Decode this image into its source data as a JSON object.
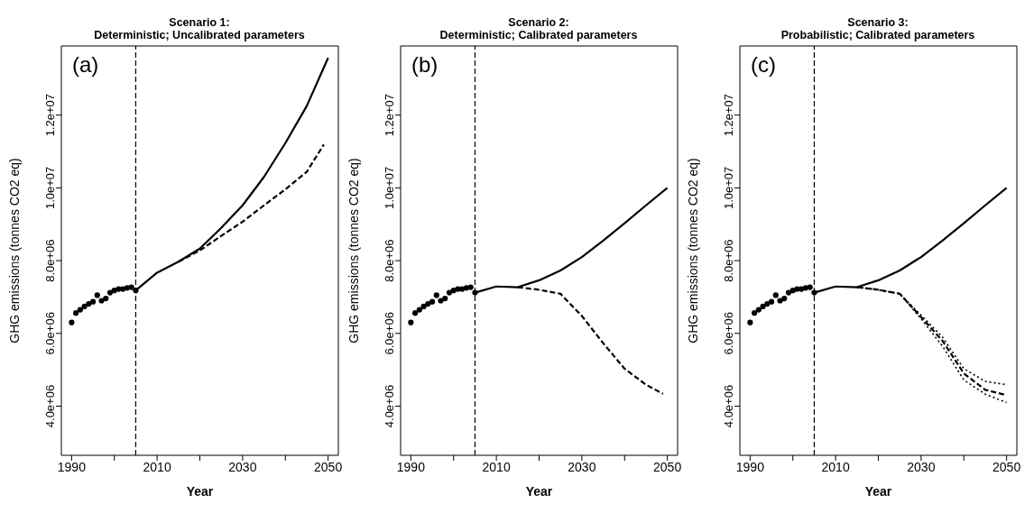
{
  "chart_data": [
    {
      "type": "line",
      "title": "Scenario 1:\nDeterministic; Uncalibrated parameters",
      "xlabel": "Year",
      "ylabel": "GHG emissions (tonnes CO2 eq)",
      "annotations": [
        "(a)"
      ],
      "xlim": [
        1987.6,
        2052.4
      ],
      "ylim": [
        2650000,
        13900000
      ],
      "xticks": [
        1990,
        {
          "value": 2000,
          "label": null
        },
        2010,
        {
          "value": 2020,
          "label": null
        },
        2030,
        {
          "value": 2040,
          "label": null
        },
        2050
      ],
      "yticks": [
        {
          "value": 4000000,
          "label": "4.0e+06"
        },
        {
          "value": 6000000,
          "label": "6.0e+06"
        },
        {
          "value": 8000000,
          "label": "8.0e+06"
        },
        {
          "value": 10000000,
          "label": "1.0e+07"
        },
        {
          "value": 12000000,
          "label": "1.2e+07"
        }
      ],
      "grid": false,
      "legend": false,
      "ref_lines": [
        {
          "axis": "x",
          "value": 2005,
          "line_style": "dashed",
          "color": "#000000"
        }
      ],
      "series": [
        {
          "type": "scatter",
          "marker": "circle",
          "color": "#000000",
          "x": [
            1990,
            1991,
            1992,
            1993,
            1994,
            1995,
            1996,
            1997,
            1998,
            1999,
            2000,
            2001,
            2002,
            2003,
            2004,
            2005
          ],
          "values": [
            6300000,
            6560000,
            6650000,
            6740000,
            6810000,
            6870000,
            7050000,
            6900000,
            6960000,
            7120000,
            7180000,
            7220000,
            7220000,
            7250000,
            7270000,
            7180000
          ]
        },
        {
          "type": "line",
          "line_style": "solid",
          "color": "#000000",
          "x": [
            2005,
            2010,
            2015,
            2020,
            2025,
            2030,
            2035,
            2040,
            2045,
            2050
          ],
          "values": [
            7180000,
            7670000,
            7970000,
            8330000,
            8900000,
            9520000,
            10300000,
            11230000,
            12250000,
            13570000
          ]
        },
        {
          "type": "line",
          "line_style": "dashed",
          "color": "#000000",
          "x": [
            2015,
            2020,
            2025,
            2030,
            2035,
            2040,
            2045,
            2049
          ],
          "values": [
            7970000,
            8280000,
            8680000,
            9070000,
            9520000,
            9960000,
            10440000,
            11190000
          ]
        }
      ]
    },
    {
      "type": "line",
      "title": "Scenario 2:\nDeterministic; Calibrated parameters",
      "xlabel": "Year",
      "ylabel": "GHG emissions (tonnes CO2 eq)",
      "annotations": [
        "(b)"
      ],
      "xlim": [
        1987.6,
        2052.4
      ],
      "ylim": [
        2650000,
        13900000
      ],
      "xticks": [
        1990,
        {
          "value": 2000,
          "label": null
        },
        2010,
        {
          "value": 2020,
          "label": null
        },
        2030,
        {
          "value": 2040,
          "label": null
        },
        2050
      ],
      "yticks": [
        {
          "value": 4000000,
          "label": "4.0e+06"
        },
        {
          "value": 6000000,
          "label": "6.0e+06"
        },
        {
          "value": 8000000,
          "label": "8.0e+06"
        },
        {
          "value": 10000000,
          "label": "1.0e+07"
        },
        {
          "value": 12000000,
          "label": "1.2e+07"
        }
      ],
      "grid": false,
      "legend": false,
      "ref_lines": [
        {
          "axis": "x",
          "value": 2005,
          "line_style": "dashed",
          "color": "#000000"
        }
      ],
      "series": [
        {
          "type": "scatter",
          "marker": "circle",
          "color": "#000000",
          "x": [
            1990,
            1991,
            1992,
            1993,
            1994,
            1995,
            1996,
            1997,
            1998,
            1999,
            2000,
            2001,
            2002,
            2003,
            2004,
            2005
          ],
          "values": [
            6300000,
            6560000,
            6650000,
            6740000,
            6810000,
            6870000,
            7050000,
            6900000,
            6960000,
            7120000,
            7180000,
            7220000,
            7220000,
            7250000,
            7270000,
            7120000
          ]
        },
        {
          "type": "line",
          "line_style": "solid",
          "color": "#000000",
          "x": [
            2005,
            2010,
            2015,
            2020,
            2025,
            2030,
            2035,
            2040,
            2045,
            2050
          ],
          "values": [
            7120000,
            7290000,
            7270000,
            7460000,
            7730000,
            8100000,
            8550000,
            9030000,
            9520000,
            10000000
          ]
        },
        {
          "type": "line",
          "line_style": "dashed",
          "color": "#000000",
          "x": [
            2015,
            2020,
            2025,
            2030,
            2035,
            2040,
            2045,
            2049
          ],
          "values": [
            7270000,
            7200000,
            7090000,
            6480000,
            5730000,
            5030000,
            4590000,
            4340000
          ]
        }
      ]
    },
    {
      "type": "line",
      "title": "Scenario 3:\nProbabilistic; Calibrated parameters",
      "xlabel": "Year",
      "ylabel": "GHG emissions (tonnes CO2 eq)",
      "annotations": [
        "(c)"
      ],
      "xlim": [
        1987.6,
        2052.4
      ],
      "ylim": [
        2650000,
        13900000
      ],
      "xticks": [
        1990,
        {
          "value": 2000,
          "label": null
        },
        2010,
        {
          "value": 2020,
          "label": null
        },
        2030,
        {
          "value": 2040,
          "label": null
        },
        2050
      ],
      "yticks": [
        {
          "value": 4000000,
          "label": "4.0e+06"
        },
        {
          "value": 6000000,
          "label": "6.0e+06"
        },
        {
          "value": 8000000,
          "label": "8.0e+06"
        },
        {
          "value": 10000000,
          "label": "1.0e+07"
        },
        {
          "value": 12000000,
          "label": "1.2e+07"
        }
      ],
      "grid": false,
      "legend": false,
      "ref_lines": [
        {
          "axis": "x",
          "value": 2005,
          "line_style": "dashed",
          "color": "#000000"
        }
      ],
      "series": [
        {
          "type": "scatter",
          "marker": "circle",
          "color": "#000000",
          "x": [
            1990,
            1991,
            1992,
            1993,
            1994,
            1995,
            1996,
            1997,
            1998,
            1999,
            2000,
            2001,
            2002,
            2003,
            2004,
            2005
          ],
          "values": [
            6300000,
            6560000,
            6650000,
            6740000,
            6810000,
            6870000,
            7050000,
            6900000,
            6960000,
            7120000,
            7180000,
            7220000,
            7220000,
            7250000,
            7270000,
            7120000
          ]
        },
        {
          "type": "line",
          "line_style": "solid",
          "color": "#000000",
          "x": [
            2005,
            2010,
            2015,
            2020,
            2025,
            2030,
            2035,
            2040,
            2045,
            2050
          ],
          "values": [
            7120000,
            7290000,
            7270000,
            7460000,
            7730000,
            8100000,
            8550000,
            9030000,
            9520000,
            10000000
          ]
        },
        {
          "type": "line",
          "line_style": "dashed",
          "color": "#000000",
          "x": [
            2015,
            2020,
            2025,
            2030,
            2035,
            2040,
            2045,
            2050
          ],
          "values": [
            7270000,
            7200000,
            7090000,
            6450000,
            5800000,
            4900000,
            4450000,
            4300000
          ]
        },
        {
          "type": "line",
          "line_style": "dotted",
          "color": "#000000",
          "x": [
            2015,
            2020,
            2025,
            2030,
            2035,
            2040,
            2045,
            2050
          ],
          "values": [
            7270000,
            7200000,
            7090000,
            6400000,
            5650000,
            4720000,
            4330000,
            4100000
          ]
        },
        {
          "type": "line",
          "line_style": "dotted",
          "color": "#000000",
          "x": [
            2015,
            2020,
            2025,
            2030,
            2035,
            2040,
            2045,
            2050
          ],
          "values": [
            7270000,
            7200000,
            7090000,
            6500000,
            5900000,
            5030000,
            4680000,
            4590000
          ]
        }
      ]
    }
  ]
}
